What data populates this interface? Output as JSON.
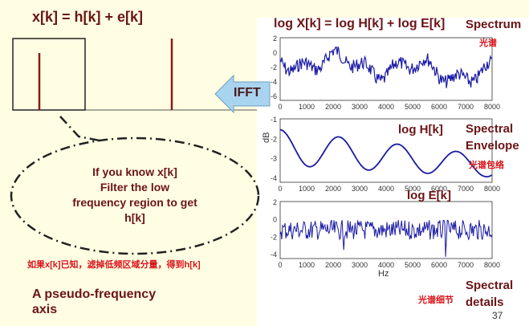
{
  "left": {
    "equation": "x[k] = h[k] + e[k]",
    "callout_lines": [
      "If you know x[k]",
      "Filter the low",
      "frequency region to get",
      "h[k]"
    ],
    "chinese_note": "如果x[k]已知，滤掉低频区域分量，得到h[k]",
    "axis_lines": [
      "A pseudo-frequency",
      "axis"
    ]
  },
  "arrow": {
    "label": "IFFT"
  },
  "right": {
    "top_equation": "log X[k] = log H[k] + log E[k]",
    "spectrum_label": "Spectrum",
    "spectrum_cn": "光谱",
    "envelope_lines": [
      "Spectral",
      "Envelope"
    ],
    "envelope_cn": "光谱包络",
    "details_lines": [
      "Spectral",
      "details"
    ],
    "details_cn": "光谱细节"
  },
  "plots": [
    {
      "name": "spectrum-plot",
      "yticks": [
        "2",
        "0",
        "-2",
        "-4",
        "-6"
      ],
      "xticks": [
        "0",
        "1000",
        "2000",
        "3000",
        "4000",
        "5000",
        "6000",
        "7000",
        "8000"
      ],
      "title": ""
    },
    {
      "name": "envelope-plot",
      "yticks": [
        "-1",
        "-2",
        "-3",
        "-4"
      ],
      "xticks": [
        "0",
        "1000",
        "2000",
        "3000",
        "4000",
        "5000",
        "6000",
        "7000",
        "8000"
      ],
      "ylabel": "dB",
      "title": "log H[k]"
    },
    {
      "name": "details-plot",
      "yticks": [
        "2",
        "0",
        "-2",
        "-4"
      ],
      "xticks": [
        "0",
        "1000",
        "2000",
        "3000",
        "4000",
        "5000",
        "6000",
        "7000",
        "8000"
      ],
      "xlabel": "Hz",
      "title": "log E[k]"
    }
  ],
  "page_number": "37",
  "colors": {
    "maroon": "#6b1416",
    "red": "#d9131a",
    "line": "#1a1aa6",
    "arrow": "#a9d4ef"
  }
}
